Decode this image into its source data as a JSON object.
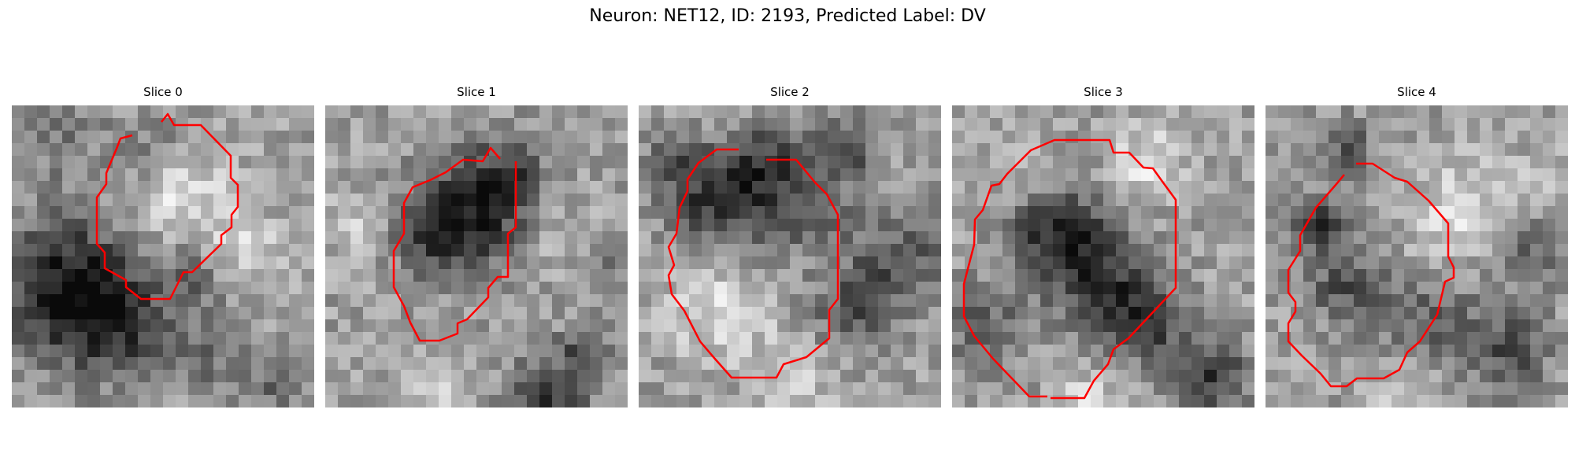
{
  "figure": {
    "title": "Neuron: NET12, ID: 2193, Predicted Label: DV"
  },
  "panels": [
    {
      "title": "Slice 0"
    },
    {
      "title": "Slice 1"
    },
    {
      "title": "Slice 2"
    },
    {
      "title": "Slice 3"
    },
    {
      "title": "Slice 4"
    }
  ],
  "style": {
    "contour_color": "#ff0000",
    "colormap": "grayscale"
  }
}
